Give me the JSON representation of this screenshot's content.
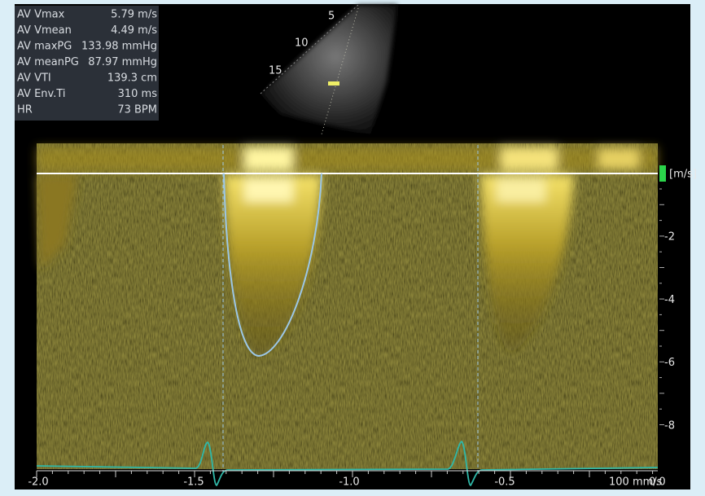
{
  "measurements": [
    {
      "label": "AV Vmax",
      "value": "5.79 m/s"
    },
    {
      "label": "AV Vmean",
      "value": "4.49 m/s"
    },
    {
      "label": "AV maxPG",
      "value": "133.98 mmHg"
    },
    {
      "label": "AV meanPG",
      "value": "87.97 mmHg"
    },
    {
      "label": "AV VTI",
      "value": "139.3 cm"
    },
    {
      "label": "AV Env.Ti",
      "value": "310 ms"
    },
    {
      "label": "HR",
      "value": "73 BPM"
    }
  ],
  "sector_depths": [
    "5",
    "10",
    "15"
  ],
  "velocity_unit": "[m/s]",
  "velocity_ticks": [
    "-2",
    "-4",
    "-6",
    "-8"
  ],
  "time_ticks": [
    "-2.0",
    "-1.5",
    "-1.0",
    "-0.5"
  ],
  "sweep_speed": "100 mm/s",
  "time_end": "0.0"
}
